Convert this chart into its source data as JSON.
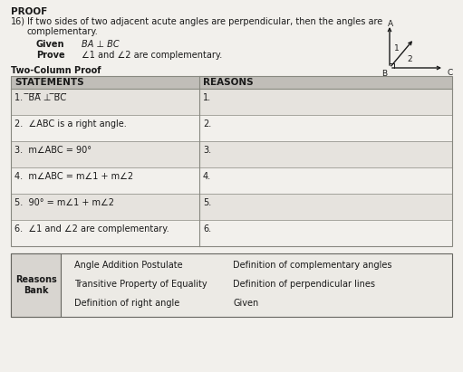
{
  "title": "PROOF",
  "problem_num": "16)",
  "problem_text": "If two sides of two adjacent acute angles are perpendicular, then the angles are\ncomplementary.",
  "given_label": "Given",
  "given_text": "BA ⊥ BC",
  "prove_label": "Prove",
  "prove_text": "∠1 and ∠2 are complementary.",
  "proof_title": "Two-Column Proof",
  "col1_header": "STATEMENTS",
  "col2_header": "REASONS",
  "statements": [
    "1.  ̅B̅A̅ ⊥ ̅B̅C̅",
    "2.  ∠ABC is a right angle.",
    "3.  m∠ABC = 90°",
    "4.  m∠ABC = m∠1 + m∠2",
    "5.  90° = m∠1 + m∠2",
    "6.  ∠1 and ∠2 are complementary."
  ],
  "reasons": [
    "1.",
    "2.",
    "3.",
    "4.",
    "5.",
    "6."
  ],
  "bank_label": "Reasons\nBank",
  "bank_items_col1": [
    "Angle Addition Postulate",
    "Transitive Property of Equality",
    "Definition of right angle"
  ],
  "bank_items_col2": [
    "Definition of complementary angles",
    "Definition of perpendicular lines",
    "Given"
  ],
  "bg_color": "#f2f0ec",
  "header_bg": "#c0bdb8",
  "table_line_color": "#888880",
  "text_color": "#1a1a1a",
  "bank_border": "#666660",
  "bank_bg": "#eceae5",
  "bank_label_bg": "#d8d5d0",
  "row_alt_bg": "#e6e3de",
  "row_bg": "#f2f0ec"
}
